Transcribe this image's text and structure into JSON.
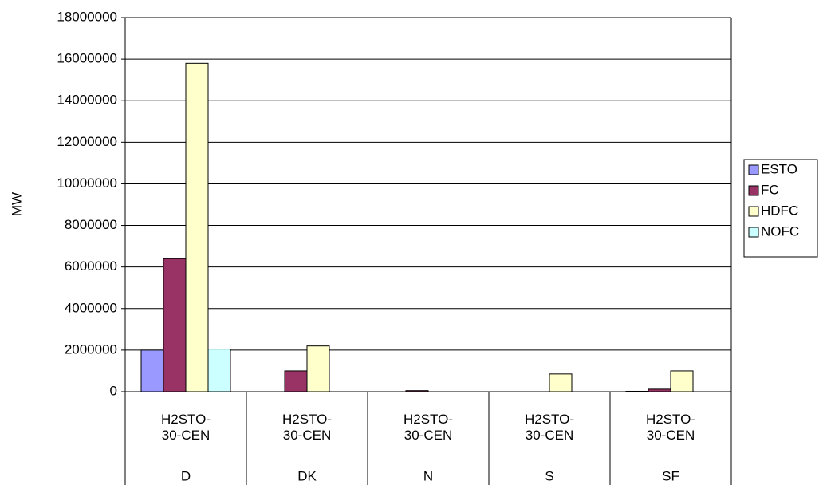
{
  "chart_data": {
    "type": "bar",
    "y_label": "MW",
    "categories": [
      [
        "H2STO-30-CEN",
        "D"
      ],
      [
        "H2STO-30-CEN",
        "DK"
      ],
      [
        "H2STO-30-CEN",
        "N"
      ],
      [
        "H2STO-30-CEN",
        "S"
      ],
      [
        "H2STO-30-CEN",
        "SF"
      ]
    ],
    "series": [
      {
        "name": "ESTO",
        "color": "#9999ff",
        "values": [
          2000000,
          0,
          0,
          0,
          20000
        ]
      },
      {
        "name": "FC",
        "color": "#993366",
        "values": [
          6400000,
          1000000,
          50000,
          0,
          120000
        ]
      },
      {
        "name": "HDFC",
        "color": "#ffffcc",
        "values": [
          15800000,
          2200000,
          0,
          850000,
          1000000
        ]
      },
      {
        "name": "NOFC",
        "color": "#ccffff",
        "values": [
          2050000,
          0,
          0,
          0,
          0
        ]
      }
    ],
    "ylim": [
      0,
      18000000
    ],
    "yticks": [
      0,
      2000000,
      4000000,
      6000000,
      8000000,
      10000000,
      12000000,
      14000000,
      16000000,
      18000000
    ],
    "grid": true,
    "legend": "right"
  }
}
